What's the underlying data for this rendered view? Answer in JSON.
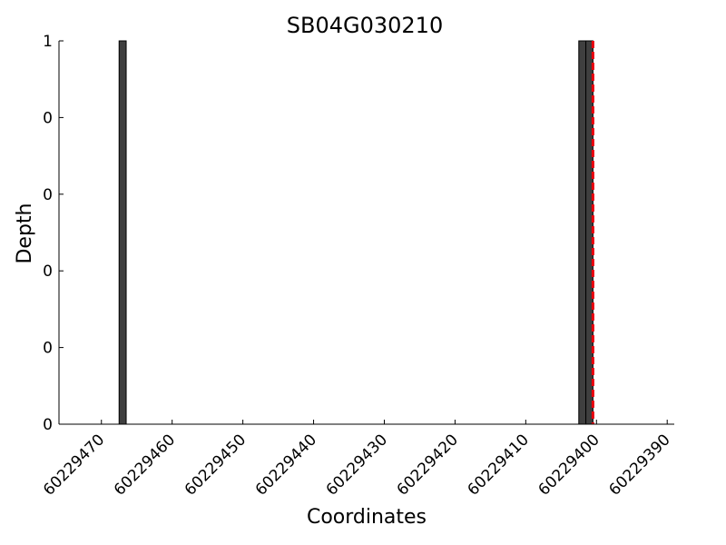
{
  "chart_data": {
    "type": "bar",
    "title": "SB04G030210",
    "xlabel": "Coordinates",
    "ylabel": "Depth",
    "x_reversed": true,
    "xlim": [
      60229476,
      60229389
    ],
    "ylim": [
      0,
      1
    ],
    "xticks": [
      60229470,
      60229460,
      60229450,
      60229440,
      60229430,
      60229420,
      60229410,
      60229400,
      60229390
    ],
    "xtick_labels": [
      "60229470",
      "60229460",
      "60229450",
      "60229440",
      "60229430",
      "60229420",
      "60229410",
      "60229400",
      "60229390"
    ],
    "yticks": [
      0,
      0.2,
      0.4,
      0.6,
      0.8,
      1
    ],
    "ytick_labels": [
      "0",
      "0",
      "0",
      "0",
      "0",
      "1"
    ],
    "bar_width": 1,
    "bars": [
      {
        "x": 60229467,
        "value": 1
      },
      {
        "x": 60229402,
        "value": 1
      },
      {
        "x": 60229401,
        "value": 1
      }
    ],
    "marker_line": {
      "x": 60229400.5,
      "style": "dashed"
    },
    "grid": false,
    "legend": "none",
    "colors": {
      "bar_fill": "#3f3f3f",
      "bar_edge": "#000000",
      "marker_line": "#e8000b",
      "axis": "#000000"
    }
  }
}
